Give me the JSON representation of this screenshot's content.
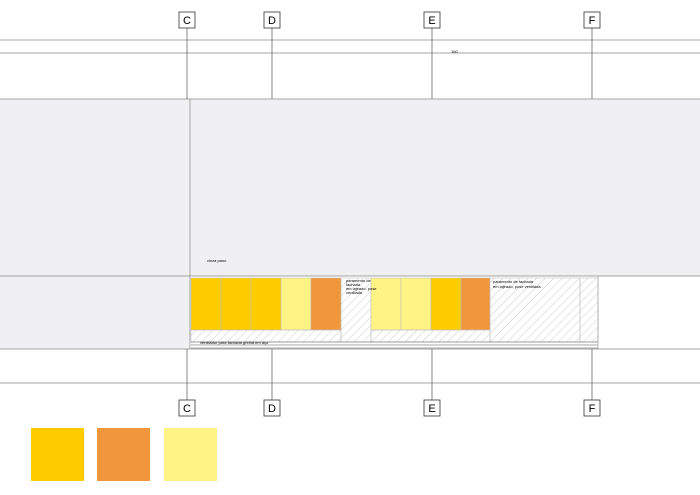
{
  "grid_labels_top": [
    "C",
    "D",
    "E",
    "F"
  ],
  "grid_labels_bottom": [
    "C",
    "D",
    "E",
    "F"
  ],
  "notes": {
    "dimension": "160",
    "ceiling": "cinza pano",
    "panel_note_1": [
      "paramento de",
      "fachada",
      "em lajeado, pose",
      "ventilada"
    ],
    "panel_note_2": [
      "paramento de fachada",
      "em lajeado, pose ventilada"
    ],
    "base_note": "ventilador para fachada grelha em aço"
  }
}
